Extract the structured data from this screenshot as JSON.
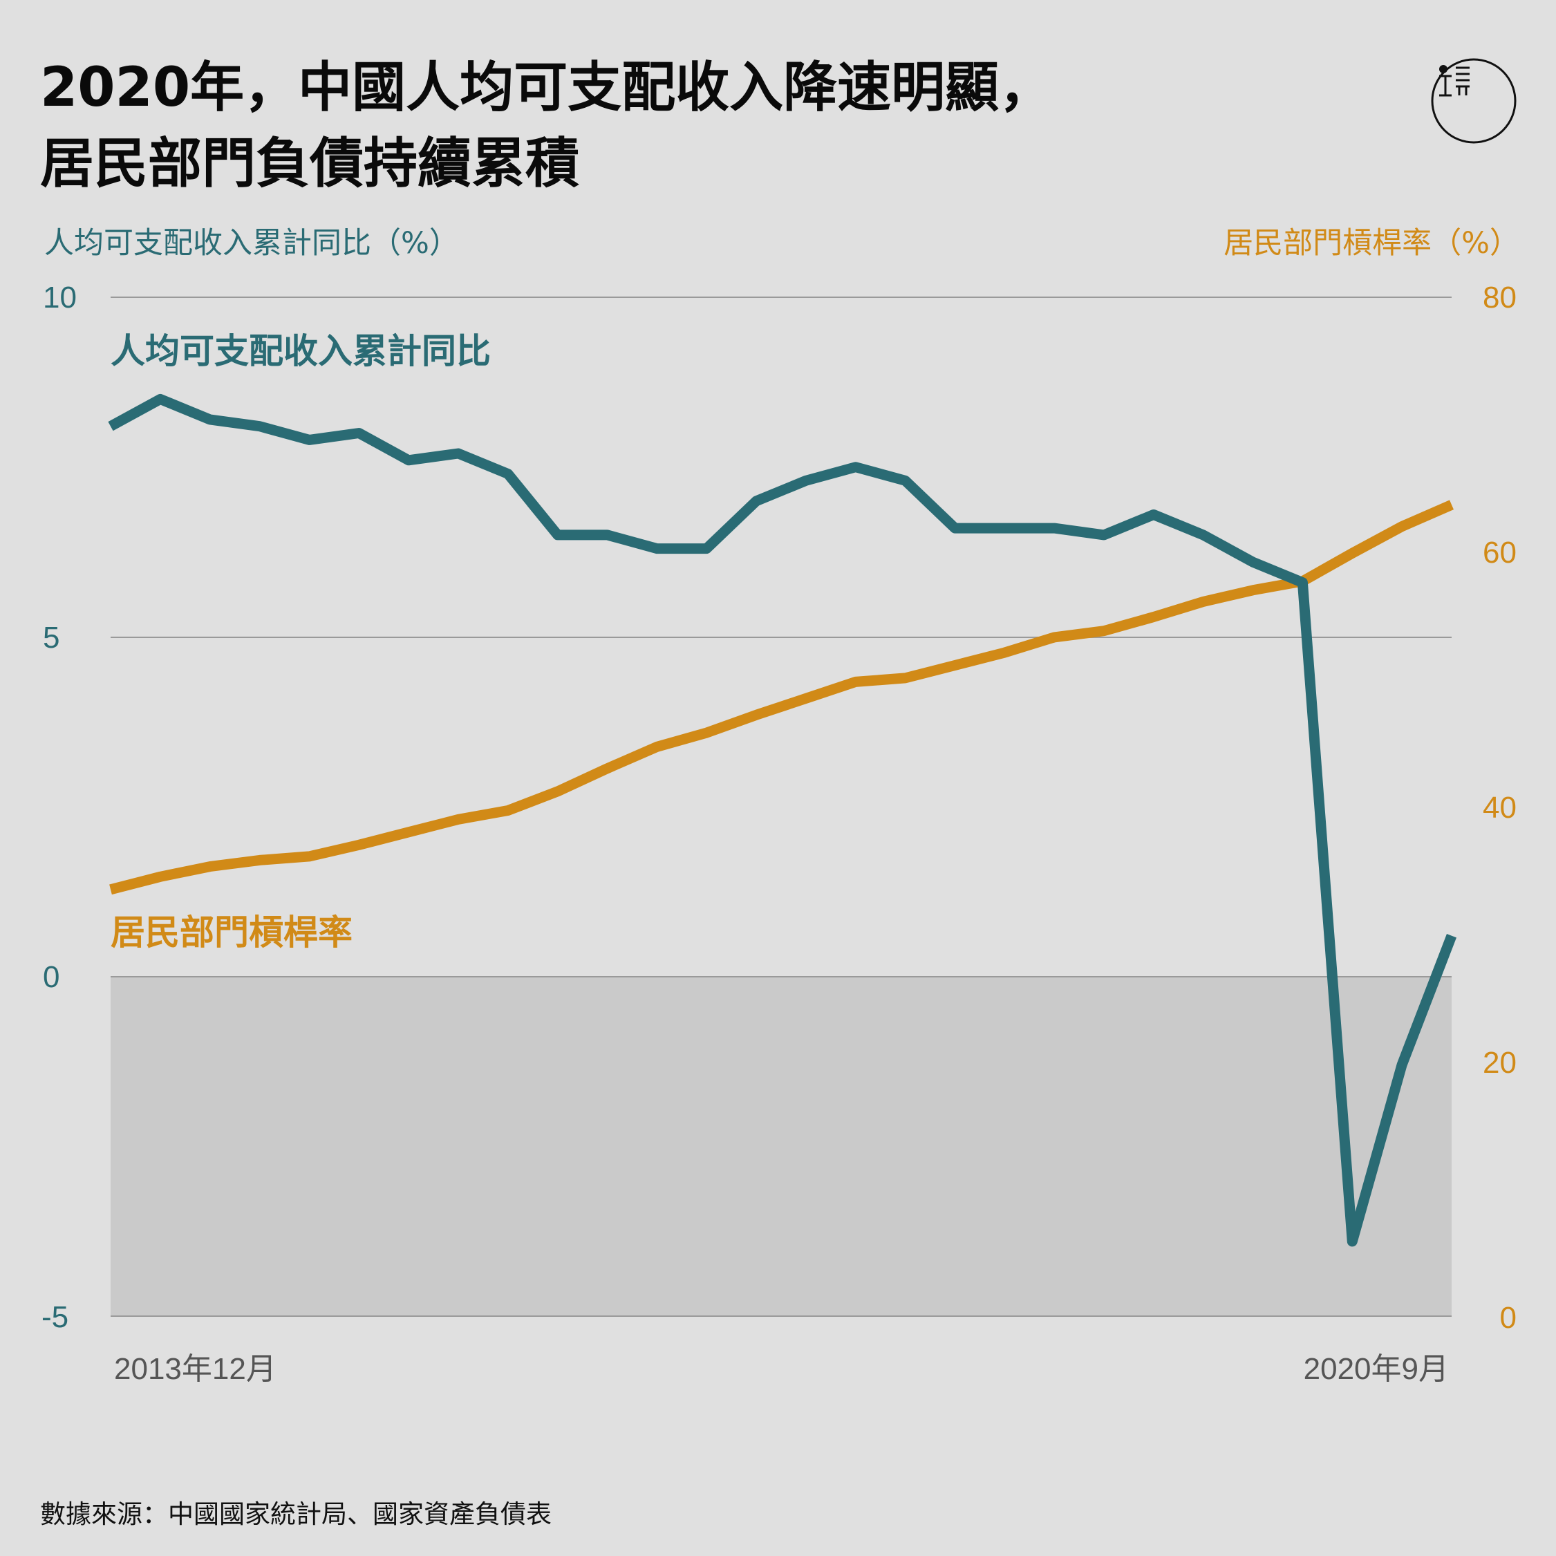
{
  "title_lines": [
    "2020年，中國人均可支配收入降速明顯，",
    "居民部門負債持續累積"
  ],
  "source": "數據來源：中國國家統計局、國家資產負債表",
  "colors": {
    "income": "#2a6b74",
    "leverage": "#d18a17",
    "negative_zone": "#cacaca",
    "grid": "#9a9a9a",
    "background": "#e0e0e0"
  },
  "chart_data": {
    "type": "line",
    "x_axis": {
      "start_label": "2013年12月",
      "end_label": "2020年9月",
      "points": 28
    },
    "y_left": {
      "label": "人均可支配收入累計同比（%）",
      "ticks": [
        "10",
        "5",
        "0",
        "-5"
      ],
      "range": [
        -5,
        10
      ]
    },
    "y_right": {
      "label": "居民部門槓桿率（%）",
      "ticks": [
        "80",
        "60",
        "40",
        "20",
        "0"
      ],
      "range": [
        0,
        80
      ]
    },
    "grid": true,
    "negative_region_shaded": true,
    "series": [
      {
        "name": "人均可支配收入累計同比",
        "axis": "left",
        "values": [
          8.1,
          8.5,
          8.2,
          8.1,
          7.9,
          8.0,
          7.6,
          7.7,
          7.4,
          6.5,
          6.5,
          6.3,
          6.3,
          7.0,
          7.3,
          7.5,
          7.3,
          6.6,
          6.6,
          6.6,
          6.5,
          6.8,
          6.5,
          6.1,
          5.8,
          -3.9,
          -1.3,
          0.6
        ]
      },
      {
        "name": "居民部門槓桿率",
        "axis": "right",
        "values": [
          33.5,
          34.5,
          35.3,
          35.8,
          36.1,
          37.0,
          38.0,
          39.0,
          39.7,
          41.2,
          43.0,
          44.7,
          45.8,
          47.2,
          48.5,
          49.8,
          50.1,
          51.1,
          52.1,
          53.3,
          53.8,
          54.9,
          56.1,
          57.0,
          57.7,
          59.9,
          62.0,
          63.7
        ]
      }
    ]
  }
}
